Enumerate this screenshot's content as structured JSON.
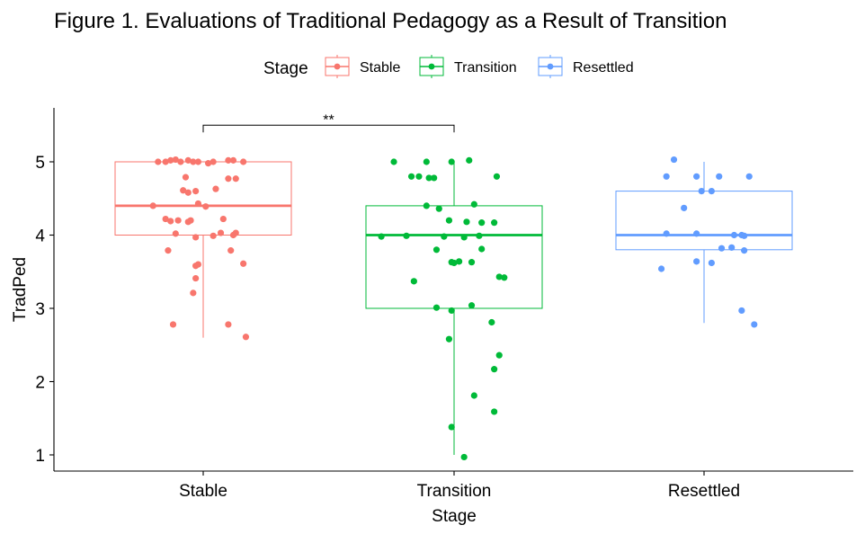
{
  "chart_data": {
    "type": "boxplot",
    "title": "Figure 1. Evaluations of Traditional Pedagogy as a Result of Transition",
    "xlabel": "Stage",
    "ylabel": "TradPed",
    "ylim": [
      0.75,
      5.75
    ],
    "yticks": [
      1,
      2,
      3,
      4,
      5
    ],
    "legend": {
      "title": "Stage",
      "position": "top"
    },
    "categories": [
      "Stable",
      "Transition",
      "Resettled"
    ],
    "series": [
      {
        "name": "Stable",
        "color": "#F8766D",
        "box": {
          "whisker_low": 2.6,
          "q1": 4.0,
          "median": 4.4,
          "q3": 5.0,
          "whisker_high": 5.0
        },
        "points": [
          [
            -0.18,
            5.0
          ],
          [
            -0.15,
            5.0
          ],
          [
            -0.13,
            5.02
          ],
          [
            -0.11,
            5.03
          ],
          [
            -0.09,
            5.0
          ],
          [
            -0.06,
            5.02
          ],
          [
            -0.04,
            5.0
          ],
          [
            -0.02,
            5.0
          ],
          [
            0.02,
            4.98
          ],
          [
            0.04,
            5.0
          ],
          [
            0.1,
            5.02
          ],
          [
            0.12,
            5.02
          ],
          [
            0.16,
            5.0
          ],
          [
            0.13,
            4.77
          ],
          [
            0.1,
            4.77
          ],
          [
            -0.07,
            4.79
          ],
          [
            -0.08,
            4.61
          ],
          [
            -0.06,
            4.58
          ],
          [
            -0.03,
            4.6
          ],
          [
            0.05,
            4.63
          ],
          [
            -0.2,
            4.4
          ],
          [
            -0.02,
            4.43
          ],
          [
            0.01,
            4.39
          ],
          [
            -0.15,
            4.22
          ],
          [
            -0.13,
            4.19
          ],
          [
            -0.1,
            4.2
          ],
          [
            -0.06,
            4.18
          ],
          [
            -0.05,
            4.2
          ],
          [
            0.08,
            4.22
          ],
          [
            -0.11,
            4.02
          ],
          [
            0.04,
            3.99
          ],
          [
            0.07,
            4.03
          ],
          [
            0.12,
            4.0
          ],
          [
            0.13,
            4.03
          ],
          [
            -0.03,
            3.97
          ],
          [
            -0.14,
            3.79
          ],
          [
            0.11,
            3.79
          ],
          [
            -0.02,
            3.6
          ],
          [
            -0.03,
            3.58
          ],
          [
            0.16,
            3.61
          ],
          [
            -0.03,
            3.41
          ],
          [
            -0.04,
            3.21
          ],
          [
            -0.12,
            2.78
          ],
          [
            0.1,
            2.78
          ],
          [
            0.17,
            2.61
          ]
        ]
      },
      {
        "name": "Transition",
        "color": "#00BA38",
        "box": {
          "whisker_low": 1.0,
          "q1": 3.0,
          "median": 4.0,
          "q3": 4.4,
          "whisker_high": 5.0
        },
        "points": [
          [
            -0.24,
            5.0
          ],
          [
            -0.11,
            5.0
          ],
          [
            -0.01,
            5.0
          ],
          [
            0.06,
            5.02
          ],
          [
            -0.17,
            4.8
          ],
          [
            -0.14,
            4.8
          ],
          [
            -0.1,
            4.78
          ],
          [
            -0.08,
            4.78
          ],
          [
            0.17,
            4.8
          ],
          [
            -0.11,
            4.4
          ],
          [
            0.08,
            4.42
          ],
          [
            -0.06,
            4.36
          ],
          [
            -0.02,
            4.2
          ],
          [
            0.05,
            4.18
          ],
          [
            0.11,
            4.17
          ],
          [
            0.16,
            4.17
          ],
          [
            -0.29,
            3.98
          ],
          [
            -0.19,
            3.99
          ],
          [
            -0.04,
            3.98
          ],
          [
            0.04,
            3.97
          ],
          [
            0.1,
            3.99
          ],
          [
            -0.07,
            3.8
          ],
          [
            0.11,
            3.81
          ],
          [
            0.0,
            3.62
          ],
          [
            0.02,
            3.64
          ],
          [
            -0.01,
            3.63
          ],
          [
            0.07,
            3.63
          ],
          [
            0.18,
            3.43
          ],
          [
            0.2,
            3.42
          ],
          [
            -0.16,
            3.37
          ],
          [
            -0.07,
            3.01
          ],
          [
            0.07,
            3.04
          ],
          [
            -0.01,
            2.97
          ],
          [
            0.15,
            2.81
          ],
          [
            -0.02,
            2.58
          ],
          [
            0.18,
            2.36
          ],
          [
            0.16,
            2.17
          ],
          [
            0.08,
            1.81
          ],
          [
            0.16,
            1.59
          ],
          [
            -0.01,
            1.38
          ],
          [
            0.04,
            0.97
          ]
        ]
      },
      {
        "name": "Resettled",
        "color": "#619CFF",
        "box": {
          "whisker_low": 2.8,
          "q1": 3.8,
          "median": 4.0,
          "q3": 4.6,
          "whisker_high": 5.0
        },
        "points": [
          [
            -0.12,
            5.03
          ],
          [
            -0.15,
            4.8
          ],
          [
            -0.03,
            4.8
          ],
          [
            0.06,
            4.8
          ],
          [
            0.18,
            4.8
          ],
          [
            -0.01,
            4.6
          ],
          [
            0.03,
            4.6
          ],
          [
            -0.08,
            4.37
          ],
          [
            -0.15,
            4.02
          ],
          [
            -0.03,
            4.02
          ],
          [
            0.12,
            4.0
          ],
          [
            0.15,
            4.0
          ],
          [
            0.16,
            3.99
          ],
          [
            0.07,
            3.82
          ],
          [
            0.11,
            3.83
          ],
          [
            0.16,
            3.79
          ],
          [
            -0.03,
            3.64
          ],
          [
            0.03,
            3.62
          ],
          [
            -0.17,
            3.54
          ],
          [
            0.15,
            2.97
          ],
          [
            0.2,
            2.78
          ]
        ]
      }
    ],
    "annotations": [
      {
        "type": "significance",
        "from": "Stable",
        "to": "Transition",
        "label": "**",
        "y": 5.5
      }
    ]
  }
}
